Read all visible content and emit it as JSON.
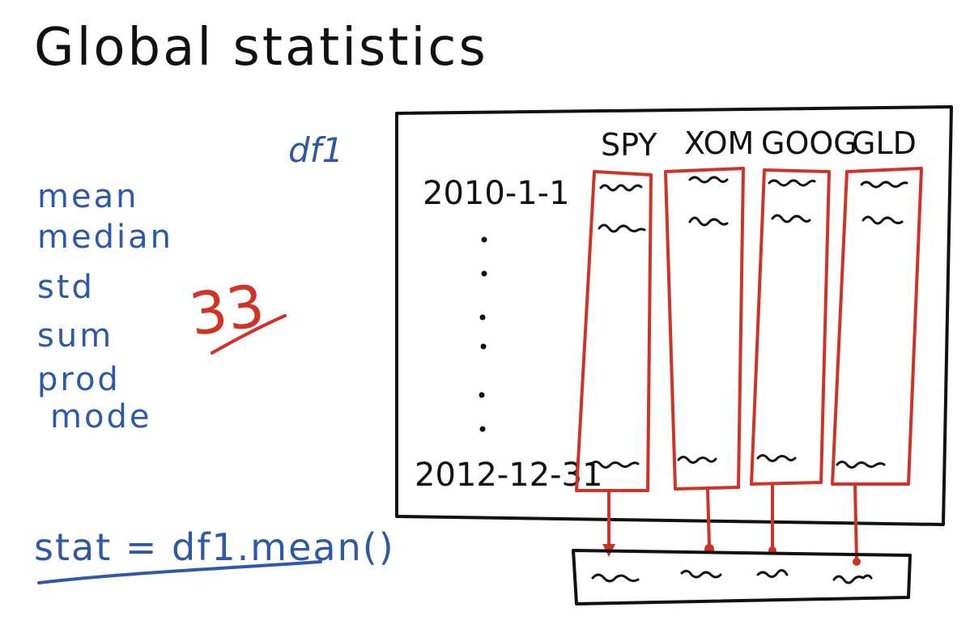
{
  "title": "Global statistics",
  "dataframe_name": "df1",
  "stats_list": [
    "mean",
    "median",
    "std",
    "sum",
    "prod",
    "mode"
  ],
  "stat_count": "33",
  "code": "stat = df1.mean()",
  "table": {
    "columns": [
      "SPY",
      "XOM",
      "GOOG",
      "GLD"
    ],
    "row_start_label": "2010-1-1",
    "row_end_label": "2012-12-31"
  },
  "colors": {
    "blue_ink": "#2e5aa5",
    "black_ink": "#111111",
    "red_ink": "#cf3327"
  }
}
